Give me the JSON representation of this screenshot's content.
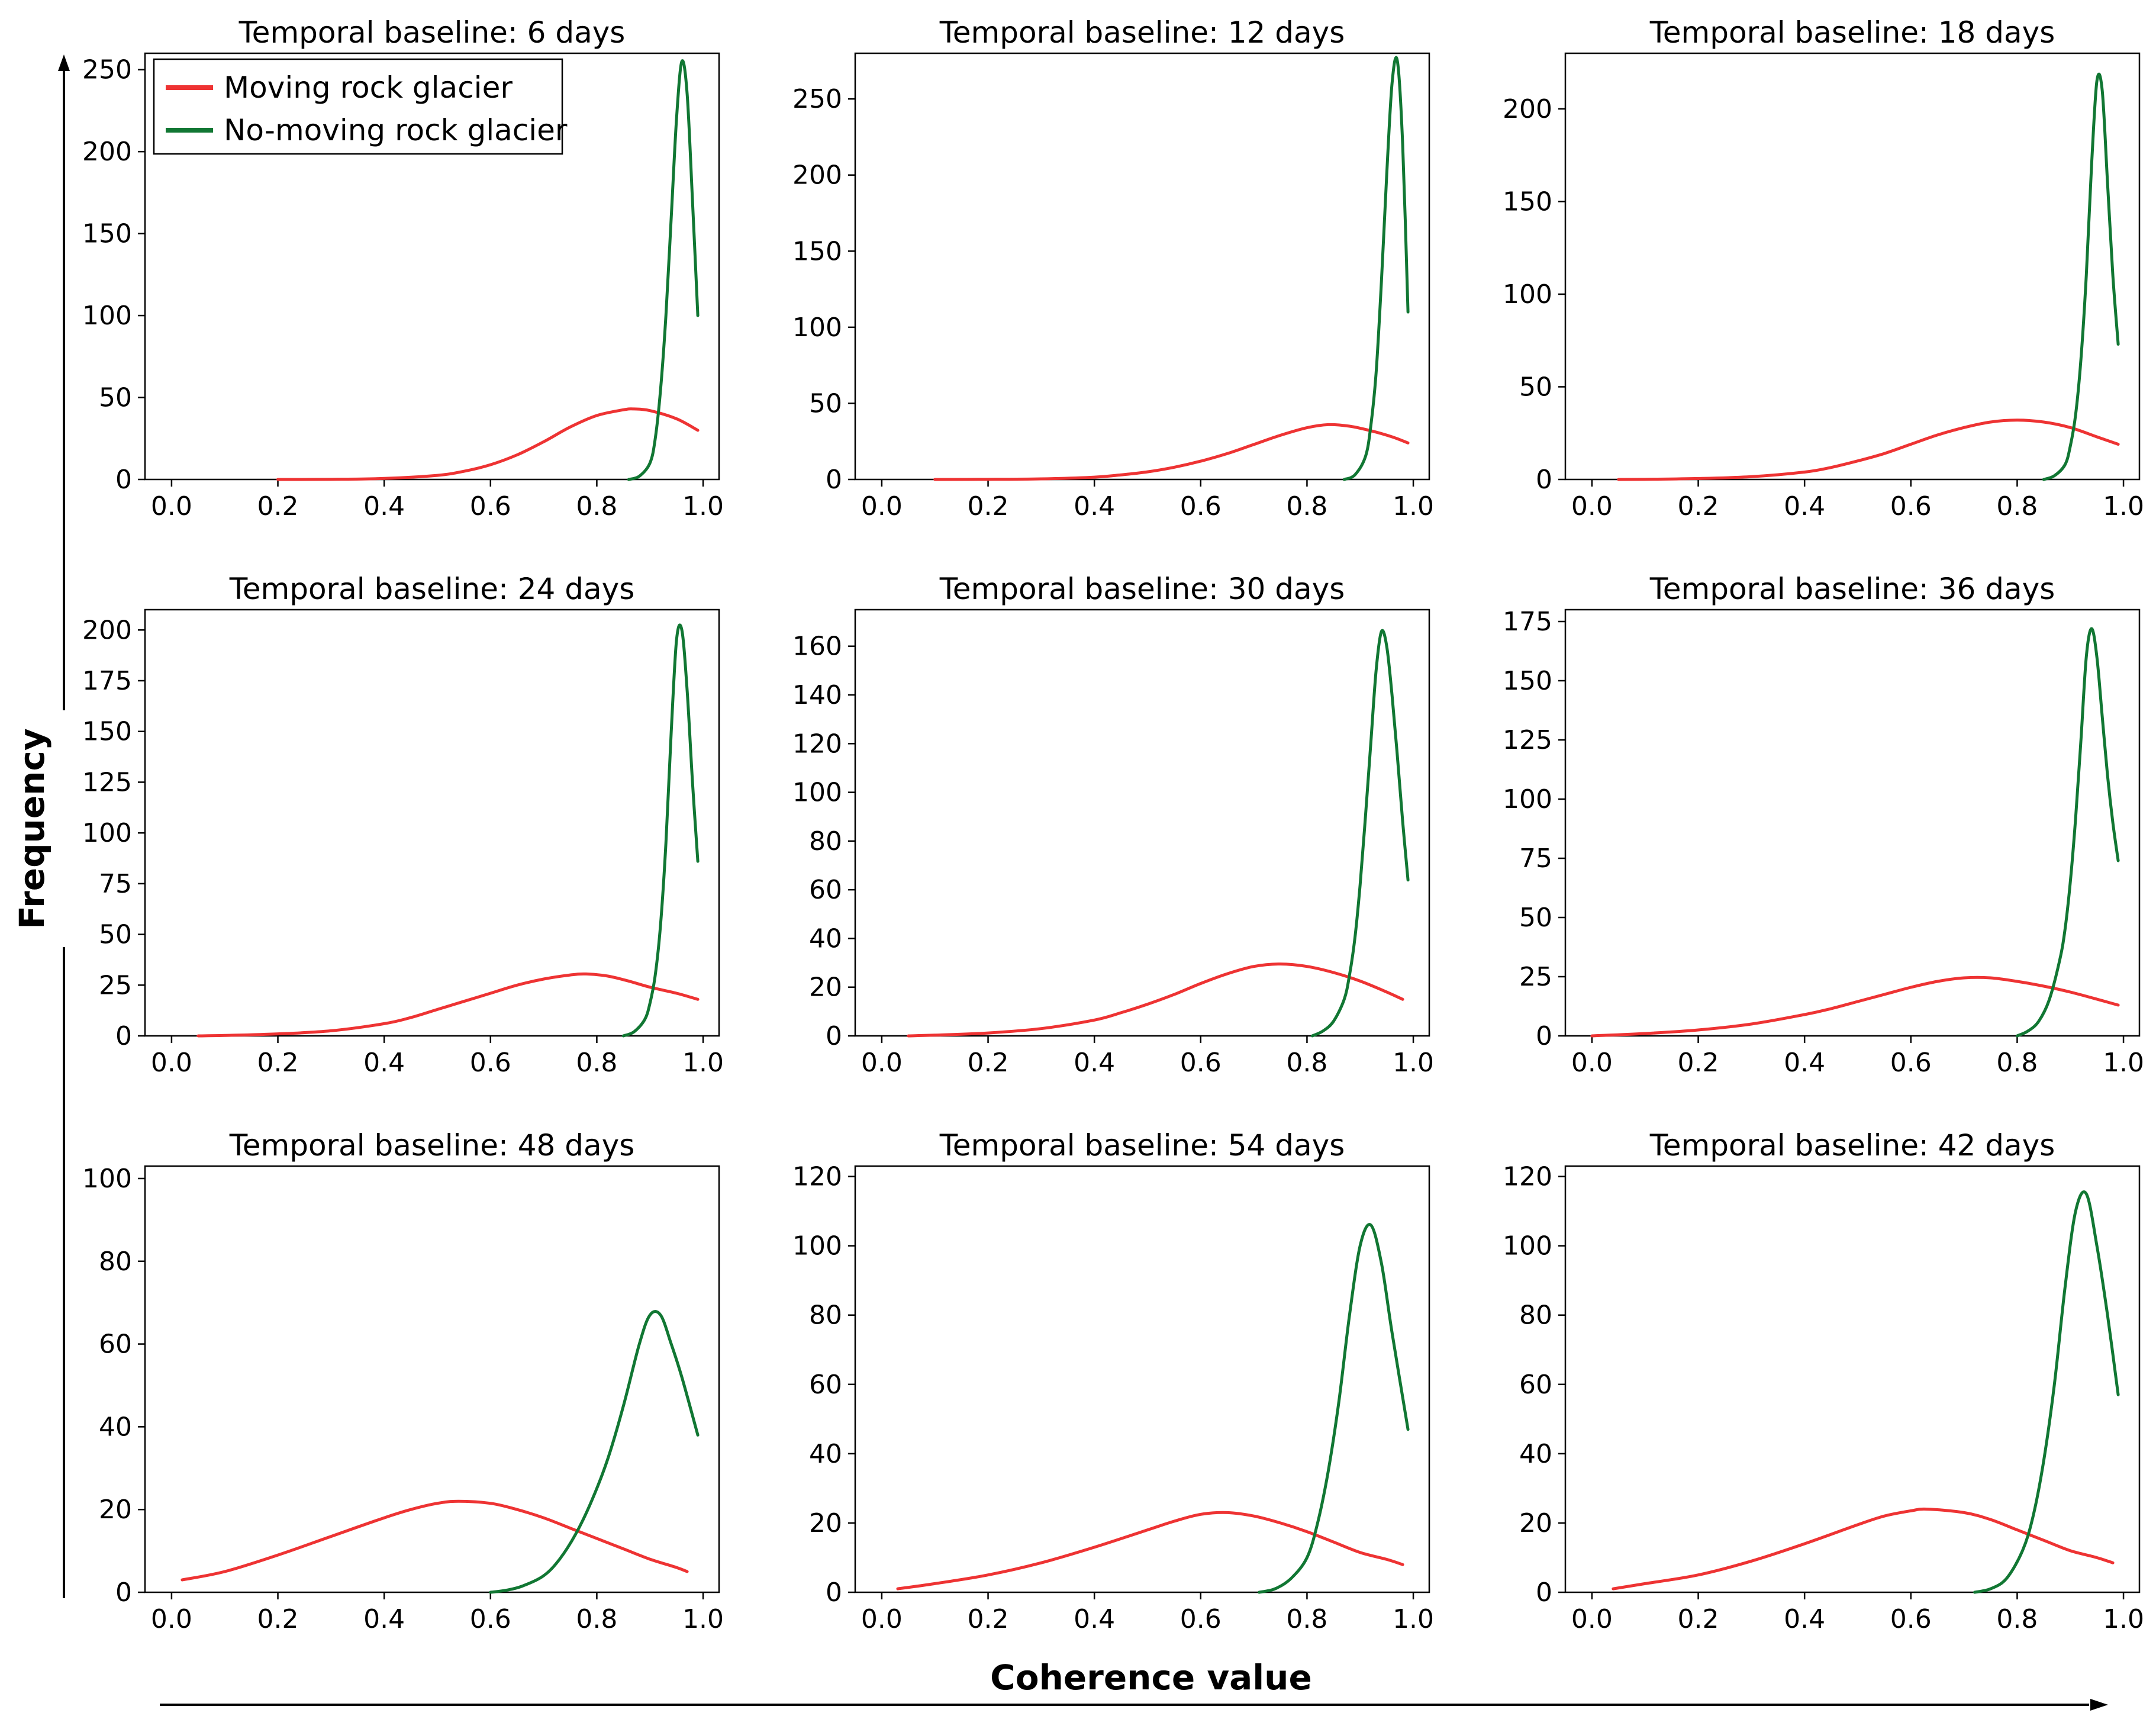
{
  "figure": {
    "xlabel": "Coherence value",
    "ylabel": "Frequency",
    "legend": {
      "placement": "top-left of first panel",
      "entries": [
        {
          "label": "Moving rock glacier",
          "color": "#ee3333"
        },
        {
          "label": "No-moving rock glacier",
          "color": "#117733"
        }
      ]
    }
  },
  "chart_data": [
    {
      "type": "line",
      "title": "Temporal baseline: 6 days",
      "xlim": [
        0.0,
        1.0
      ],
      "ylim": [
        0,
        260
      ],
      "xticks": [
        0.0,
        0.2,
        0.4,
        0.6,
        0.8,
        1.0
      ],
      "xtick_labels": [
        "0.0",
        "0.2",
        "0.4",
        "0.6",
        "0.8",
        "1.0"
      ],
      "yticks": [
        0,
        50,
        100,
        150,
        200,
        250
      ],
      "ytick_labels": [
        "0",
        "50",
        "100",
        "150",
        "200",
        "250"
      ],
      "series": [
        {
          "name": "Moving rock glacier",
          "color": "#ee3333",
          "x": [
            0.2,
            0.3,
            0.4,
            0.5,
            0.55,
            0.6,
            0.65,
            0.7,
            0.75,
            0.8,
            0.85,
            0.87,
            0.9,
            0.95,
            0.99
          ],
          "y": [
            0,
            0.1,
            0.6,
            2.5,
            5,
            9,
            15,
            23,
            32,
            39,
            42.5,
            43,
            42,
            37,
            30
          ]
        },
        {
          "name": "No-moving rock glacier",
          "color": "#117733",
          "x": [
            0.86,
            0.88,
            0.9,
            0.91,
            0.92,
            0.93,
            0.94,
            0.95,
            0.96,
            0.97,
            0.98,
            0.99
          ],
          "y": [
            0,
            2,
            10,
            25,
            55,
            100,
            160,
            220,
            255,
            235,
            170,
            100
          ]
        }
      ]
    },
    {
      "type": "line",
      "title": "Temporal baseline: 12 days",
      "xlim": [
        0.0,
        1.0
      ],
      "ylim": [
        0,
        280
      ],
      "xticks": [
        0.0,
        0.2,
        0.4,
        0.6,
        0.8,
        1.0
      ],
      "xtick_labels": [
        "0.0",
        "0.2",
        "0.4",
        "0.6",
        "0.8",
        "1.0"
      ],
      "yticks": [
        0,
        50,
        100,
        150,
        200,
        250
      ],
      "ytick_labels": [
        "0",
        "50",
        "100",
        "150",
        "200",
        "250"
      ],
      "series": [
        {
          "name": "Moving rock glacier",
          "color": "#ee3333",
          "x": [
            0.1,
            0.2,
            0.3,
            0.4,
            0.45,
            0.5,
            0.55,
            0.6,
            0.65,
            0.7,
            0.75,
            0.8,
            0.84,
            0.88,
            0.92,
            0.96,
            0.99
          ],
          "y": [
            0,
            0.1,
            0.4,
            1.5,
            3,
            5,
            8,
            12,
            17,
            23,
            29,
            34,
            36,
            35,
            32,
            28,
            24
          ]
        },
        {
          "name": "No-moving rock glacier",
          "color": "#117733",
          "x": [
            0.87,
            0.89,
            0.91,
            0.92,
            0.93,
            0.94,
            0.95,
            0.96,
            0.97,
            0.98,
            0.99
          ],
          "y": [
            0,
            3,
            15,
            35,
            70,
            130,
            200,
            260,
            275,
            220,
            110
          ]
        }
      ]
    },
    {
      "type": "line",
      "title": "Temporal baseline: 18 days",
      "xlim": [
        0.0,
        1.0
      ],
      "ylim": [
        0,
        230
      ],
      "xticks": [
        0.0,
        0.2,
        0.4,
        0.6,
        0.8,
        1.0
      ],
      "xtick_labels": [
        "0.0",
        "0.2",
        "0.4",
        "0.6",
        "0.8",
        "1.0"
      ],
      "yticks": [
        0,
        50,
        100,
        150,
        200
      ],
      "ytick_labels": [
        "0",
        "50",
        "100",
        "150",
        "200"
      ],
      "series": [
        {
          "name": "Moving rock glacier",
          "color": "#ee3333",
          "x": [
            0.05,
            0.1,
            0.2,
            0.3,
            0.4,
            0.45,
            0.5,
            0.55,
            0.6,
            0.65,
            0.7,
            0.75,
            0.8,
            0.85,
            0.9,
            0.95,
            0.99
          ],
          "y": [
            0,
            0.1,
            0.5,
            1.5,
            4,
            6.5,
            10,
            14,
            19,
            24,
            28,
            31,
            32,
            31,
            28,
            23,
            19
          ]
        },
        {
          "name": "No-moving rock glacier",
          "color": "#117733",
          "x": [
            0.85,
            0.87,
            0.89,
            0.9,
            0.91,
            0.92,
            0.93,
            0.94,
            0.95,
            0.96,
            0.97,
            0.98,
            0.99
          ],
          "y": [
            0,
            2,
            8,
            18,
            35,
            65,
            110,
            170,
            215,
            210,
            160,
            110,
            73
          ]
        }
      ]
    },
    {
      "type": "line",
      "title": "Temporal baseline: 24 days",
      "xlim": [
        0.0,
        1.0
      ],
      "ylim": [
        0,
        210
      ],
      "xticks": [
        0.0,
        0.2,
        0.4,
        0.6,
        0.8,
        1.0
      ],
      "xtick_labels": [
        "0.0",
        "0.2",
        "0.4",
        "0.6",
        "0.8",
        "1.0"
      ],
      "yticks": [
        0,
        25,
        50,
        75,
        100,
        125,
        150,
        175,
        200
      ],
      "ytick_labels": [
        "0",
        "25",
        "50",
        "75",
        "100",
        "125",
        "150",
        "175",
        "200"
      ],
      "series": [
        {
          "name": "Moving rock glacier",
          "color": "#ee3333",
          "x": [
            0.05,
            0.1,
            0.2,
            0.3,
            0.4,
            0.45,
            0.5,
            0.55,
            0.6,
            0.65,
            0.7,
            0.75,
            0.78,
            0.82,
            0.86,
            0.9,
            0.95,
            0.99
          ],
          "y": [
            0,
            0.2,
            1,
            2.5,
            6,
            9,
            13,
            17,
            21,
            25,
            28,
            30,
            30.5,
            29.5,
            27,
            24,
            21,
            18
          ]
        },
        {
          "name": "No-moving rock glacier",
          "color": "#117733",
          "x": [
            0.85,
            0.87,
            0.89,
            0.9,
            0.91,
            0.92,
            0.93,
            0.94,
            0.95,
            0.96,
            0.97,
            0.98,
            0.99
          ],
          "y": [
            0,
            2,
            8,
            16,
            30,
            55,
            95,
            150,
            195,
            200,
            170,
            125,
            86
          ]
        }
      ]
    },
    {
      "type": "line",
      "title": "Temporal baseline: 30 days",
      "xlim": [
        0.0,
        1.0
      ],
      "ylim": [
        0,
        175
      ],
      "xticks": [
        0.0,
        0.2,
        0.4,
        0.6,
        0.8,
        1.0
      ],
      "xtick_labels": [
        "0.0",
        "0.2",
        "0.4",
        "0.6",
        "0.8",
        "1.0"
      ],
      "yticks": [
        0,
        20,
        40,
        60,
        80,
        100,
        120,
        140,
        160
      ],
      "ytick_labels": [
        "0",
        "20",
        "40",
        "60",
        "80",
        "100",
        "120",
        "140",
        "160"
      ],
      "series": [
        {
          "name": "Moving rock glacier",
          "color": "#ee3333",
          "x": [
            0.05,
            0.1,
            0.2,
            0.3,
            0.4,
            0.45,
            0.5,
            0.55,
            0.6,
            0.65,
            0.7,
            0.75,
            0.8,
            0.85,
            0.9,
            0.95,
            0.98
          ],
          "y": [
            0,
            0.3,
            1.2,
            3,
            6.5,
            9.5,
            13,
            17,
            21.5,
            25.5,
            28.5,
            29.5,
            28.5,
            26,
            22.5,
            18,
            15
          ]
        },
        {
          "name": "No-moving rock glacier",
          "color": "#117733",
          "x": [
            0.81,
            0.83,
            0.85,
            0.87,
            0.88,
            0.89,
            0.9,
            0.91,
            0.92,
            0.93,
            0.94,
            0.95,
            0.96,
            0.97,
            0.98,
            0.99
          ],
          "y": [
            0,
            2,
            6,
            15,
            25,
            40,
            62,
            90,
            120,
            150,
            166,
            160,
            140,
            115,
            88,
            64
          ]
        }
      ]
    },
    {
      "type": "line",
      "title": "Temporal baseline: 36 days",
      "xlim": [
        0.0,
        1.0
      ],
      "ylim": [
        0,
        180
      ],
      "xticks": [
        0.0,
        0.2,
        0.4,
        0.6,
        0.8,
        1.0
      ],
      "xtick_labels": [
        "0.0",
        "0.2",
        "0.4",
        "0.6",
        "0.8",
        "1.0"
      ],
      "yticks": [
        0,
        25,
        50,
        75,
        100,
        125,
        150,
        175
      ],
      "ytick_labels": [
        "0",
        "25",
        "50",
        "75",
        "100",
        "125",
        "150",
        "175"
      ],
      "series": [
        {
          "name": "Moving rock glacier",
          "color": "#ee3333",
          "x": [
            0.0,
            0.1,
            0.2,
            0.3,
            0.4,
            0.45,
            0.5,
            0.55,
            0.6,
            0.65,
            0.7,
            0.75,
            0.8,
            0.85,
            0.9,
            0.95,
            0.99
          ],
          "y": [
            0,
            1,
            2.5,
            5,
            9,
            11.5,
            14.5,
            17.5,
            20.5,
            23,
            24.5,
            24.5,
            23,
            21,
            18.5,
            15.5,
            13
          ]
        },
        {
          "name": "No-moving rock glacier",
          "color": "#117733",
          "x": [
            0.8,
            0.82,
            0.84,
            0.86,
            0.88,
            0.89,
            0.9,
            0.91,
            0.92,
            0.93,
            0.94,
            0.95,
            0.96,
            0.97,
            0.98,
            0.99
          ],
          "y": [
            0,
            2,
            6,
            15,
            32,
            45,
            65,
            92,
            125,
            160,
            172,
            160,
            135,
            110,
            90,
            74
          ]
        }
      ]
    },
    {
      "type": "line",
      "title": "Temporal baseline: 48 days",
      "xlim": [
        0.0,
        1.0
      ],
      "ylim": [
        0,
        103
      ],
      "xticks": [
        0.0,
        0.2,
        0.4,
        0.6,
        0.8,
        1.0
      ],
      "xtick_labels": [
        "0.0",
        "0.2",
        "0.4",
        "0.6",
        "0.8",
        "1.0"
      ],
      "yticks": [
        0,
        20,
        40,
        60,
        80,
        100
      ],
      "ytick_labels": [
        "0",
        "20",
        "40",
        "60",
        "80",
        "100"
      ],
      "series": [
        {
          "name": "Moving rock glacier",
          "color": "#ee3333",
          "x": [
            0.02,
            0.1,
            0.2,
            0.3,
            0.4,
            0.45,
            0.5,
            0.54,
            0.6,
            0.65,
            0.7,
            0.75,
            0.8,
            0.85,
            0.9,
            0.95,
            0.97
          ],
          "y": [
            3,
            5,
            9,
            13.5,
            18,
            20,
            21.5,
            22,
            21.5,
            20,
            18,
            15.5,
            13,
            10.5,
            8,
            6,
            5
          ]
        },
        {
          "name": "No-moving rock glacier",
          "color": "#117733",
          "x": [
            0.6,
            0.63,
            0.66,
            0.7,
            0.73,
            0.76,
            0.79,
            0.82,
            0.85,
            0.88,
            0.9,
            0.92,
            0.94,
            0.96,
            0.99
          ],
          "y": [
            0,
            0.5,
            1.5,
            4,
            8,
            14,
            22,
            32,
            45,
            60,
            67,
            67,
            60,
            52,
            38
          ]
        }
      ]
    },
    {
      "type": "line",
      "title": "Temporal baseline: 54 days",
      "xlim": [
        0.0,
        1.0
      ],
      "ylim": [
        0,
        123
      ],
      "xticks": [
        0.0,
        0.2,
        0.4,
        0.6,
        0.8,
        1.0
      ],
      "xtick_labels": [
        "0.0",
        "0.2",
        "0.4",
        "0.6",
        "0.8",
        "1.0"
      ],
      "yticks": [
        0,
        20,
        40,
        60,
        80,
        100,
        120
      ],
      "ytick_labels": [
        "0",
        "20",
        "40",
        "60",
        "80",
        "100",
        "120"
      ],
      "series": [
        {
          "name": "Moving rock glacier",
          "color": "#ee3333",
          "x": [
            0.03,
            0.1,
            0.2,
            0.3,
            0.4,
            0.5,
            0.55,
            0.6,
            0.65,
            0.7,
            0.75,
            0.8,
            0.85,
            0.9,
            0.95,
            0.98
          ],
          "y": [
            1,
            2.5,
            5,
            8.5,
            13,
            18,
            20.5,
            22.5,
            23,
            22,
            20,
            17.5,
            14.5,
            11.5,
            9.5,
            8
          ]
        },
        {
          "name": "No-moving rock glacier",
          "color": "#117733",
          "x": [
            0.71,
            0.74,
            0.77,
            0.8,
            0.82,
            0.84,
            0.86,
            0.88,
            0.9,
            0.92,
            0.94,
            0.96,
            0.99
          ],
          "y": [
            0,
            1,
            4,
            10,
            20,
            35,
            55,
            80,
            100,
            106,
            95,
            75,
            47
          ]
        }
      ]
    },
    {
      "type": "line",
      "title": "Temporal baseline: 42 days",
      "xlim": [
        0.0,
        1.0
      ],
      "ylim": [
        0,
        123
      ],
      "xticks": [
        0.0,
        0.2,
        0.4,
        0.6,
        0.8,
        1.0
      ],
      "xtick_labels": [
        "0.0",
        "0.2",
        "0.4",
        "0.6",
        "0.8",
        "1.0"
      ],
      "yticks": [
        0,
        20,
        40,
        60,
        80,
        100,
        120
      ],
      "ytick_labels": [
        "0",
        "20",
        "40",
        "60",
        "80",
        "100",
        "120"
      ],
      "series": [
        {
          "name": "Moving rock glacier",
          "color": "#ee3333",
          "x": [
            0.04,
            0.1,
            0.2,
            0.3,
            0.4,
            0.5,
            0.55,
            0.6,
            0.63,
            0.7,
            0.75,
            0.8,
            0.85,
            0.9,
            0.95,
            0.98
          ],
          "y": [
            1,
            2.5,
            5,
            9,
            14,
            19.5,
            22,
            23.5,
            24,
            23,
            21,
            18,
            15,
            12,
            10,
            8.5
          ]
        },
        {
          "name": "No-moving rock glacier",
          "color": "#117733",
          "x": [
            0.72,
            0.75,
            0.78,
            0.81,
            0.83,
            0.85,
            0.87,
            0.89,
            0.91,
            0.93,
            0.95,
            0.97,
            0.99
          ],
          "y": [
            0,
            1,
            4,
            12,
            22,
            38,
            60,
            88,
            110,
            115,
            100,
            80,
            57
          ]
        }
      ]
    }
  ]
}
